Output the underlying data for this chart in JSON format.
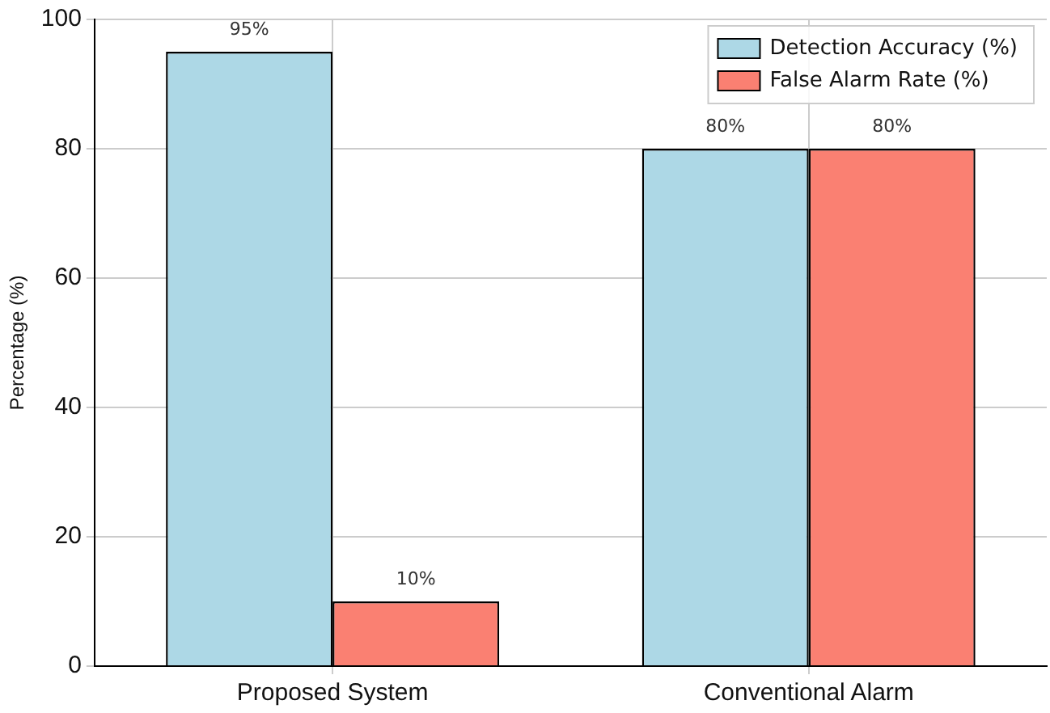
{
  "chart_data": {
    "type": "bar",
    "ylabel": "Percentage (%)",
    "categories": [
      "Proposed System",
      "Conventional Alarm"
    ],
    "series": [
      {
        "name": "Detection Accuracy (%)",
        "color": "#add8e6",
        "values": [
          95,
          80
        ],
        "value_labels": [
          "95%",
          "80%"
        ]
      },
      {
        "name": "False Alarm Rate (%)",
        "color": "#fa8072",
        "values": [
          10,
          80
        ],
        "value_labels": [
          "10%",
          "80%"
        ]
      }
    ],
    "ylim": [
      0,
      100
    ],
    "yticks": [
      0,
      20,
      40,
      60,
      80,
      100
    ],
    "grid": true,
    "legend": "top right"
  }
}
